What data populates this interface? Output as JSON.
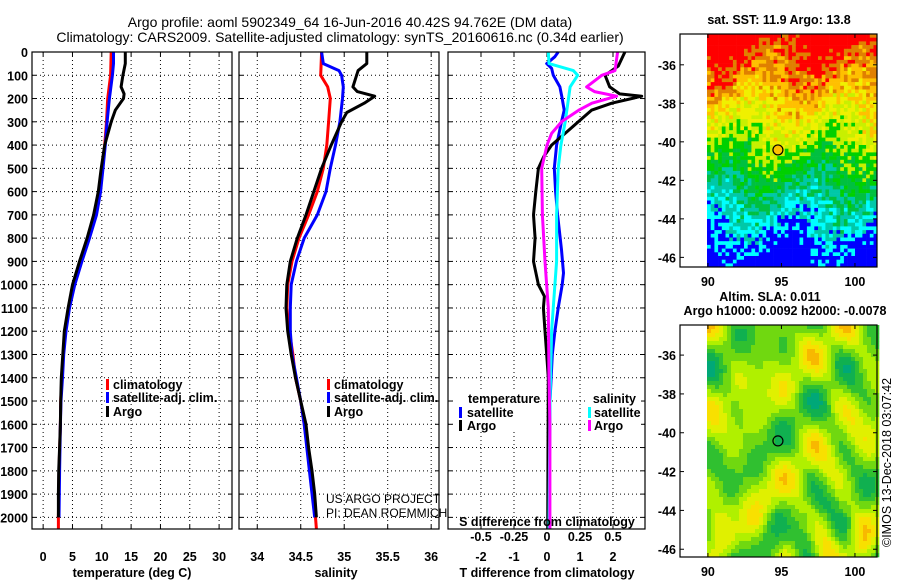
{
  "header": {
    "title_line1": "Argo profile: aoml 5902349_64 16-Jun-2016 40.42S 94.762E (DM data)",
    "title_line2": "Climatology: CARS2009. Satellite-adjusted climatology: synTS_20160616.nc (0.34d earlier)"
  },
  "credits": {
    "project": "US ARGO PROJECT",
    "pi": "PI: DEAN ROEMMICH",
    "timestamp": "©IMOS 13-Dec-2018 03:07:42"
  },
  "colors": {
    "climatology": "#ff0000",
    "satellite": "#0000ff",
    "argo": "#000000",
    "salinity_satellite": "#00ffff",
    "salinity_argo": "#ff00ff"
  },
  "chart_data": [
    {
      "id": "temperature",
      "type": "line",
      "xlabel": "temperature (deg C)",
      "ylabel": "",
      "xlim": [
        -1.9,
        32.2
      ],
      "ylim": [
        2050,
        0
      ],
      "xticks": [
        0,
        5,
        10,
        15,
        20,
        25,
        30
      ],
      "yticks": [
        0,
        100,
        200,
        300,
        400,
        500,
        600,
        700,
        800,
        900,
        1000,
        1100,
        1200,
        1300,
        1400,
        1500,
        1600,
        1700,
        1800,
        1900,
        2000
      ],
      "grid": true,
      "legend": {
        "position": "lower-right",
        "entries": [
          "climatology",
          "satellite-adj. clim.",
          "Argo"
        ]
      },
      "series": [
        {
          "name": "climatology",
          "color": "#ff0000",
          "depth": [
            0,
            100,
            200,
            300,
            400,
            500,
            600,
            700,
            800,
            900,
            1000,
            1100,
            1200,
            1300,
            1400,
            1500,
            1600,
            1800,
            2000,
            2050
          ],
          "values": [
            11.6,
            11.5,
            11.0,
            10.8,
            10.5,
            10.0,
            9.6,
            8.9,
            7.7,
            6.5,
            5.3,
            4.4,
            3.8,
            3.45,
            3.2,
            3.0,
            2.95,
            2.7,
            2.6,
            2.6
          ]
        },
        {
          "name": "satellite-adj. clim.",
          "color": "#0000ff",
          "depth": [
            0,
            50,
            100,
            200,
            300,
            400,
            500,
            600,
            700,
            800,
            900,
            1000,
            1100,
            1200,
            1300,
            1400,
            1500,
            1600,
            1800,
            2000
          ],
          "values": [
            12.0,
            12.0,
            11.8,
            11.3,
            10.9,
            10.6,
            10.2,
            9.8,
            9.1,
            7.9,
            6.6,
            5.4,
            4.5,
            3.9,
            3.5,
            3.3,
            3.05,
            2.95,
            2.8,
            2.7
          ]
        },
        {
          "name": "Argo",
          "color": "#000000",
          "depth": [
            0,
            50,
            100,
            150,
            180,
            200,
            250,
            300,
            400,
            500,
            600,
            700,
            800,
            900,
            1000,
            1100,
            1200,
            1300,
            1400,
            1500,
            1600,
            1700,
            1800,
            1900,
            2000
          ],
          "values": [
            14.0,
            14.0,
            13.6,
            13.3,
            13.8,
            13.7,
            12.3,
            11.6,
            10.5,
            9.9,
            9.4,
            8.6,
            7.5,
            6.2,
            5.0,
            4.25,
            3.6,
            3.35,
            3.1,
            3.0,
            2.95,
            2.8,
            2.65,
            2.6,
            2.6
          ]
        }
      ]
    },
    {
      "id": "salinity",
      "type": "line",
      "xlabel": "salinity",
      "xlim": [
        33.79,
        36.09
      ],
      "ylim": [
        2050,
        0
      ],
      "xticks": [
        34,
        34.5,
        35,
        35.5,
        36
      ],
      "grid": true,
      "legend": {
        "position": "lower-right",
        "entries": [
          "climatology",
          "satellite-adj. clim.",
          "Argo"
        ]
      },
      "series": [
        {
          "name": "climatology",
          "color": "#ff0000",
          "depth": [
            0,
            100,
            150,
            200,
            300,
            400,
            500,
            600,
            700,
            800,
            900,
            1000,
            1100,
            1200,
            1300,
            1400,
            1500,
            1600,
            1800,
            2000,
            2050
          ],
          "values": [
            34.74,
            34.73,
            34.81,
            34.84,
            34.82,
            34.8,
            34.76,
            34.69,
            34.59,
            34.48,
            34.4,
            34.35,
            34.34,
            34.37,
            34.41,
            34.44,
            34.5,
            34.54,
            34.61,
            34.67,
            34.68
          ]
        },
        {
          "name": "satellite-adj. clim.",
          "color": "#0000ff",
          "depth": [
            0,
            50,
            80,
            100,
            150,
            200,
            300,
            400,
            500,
            600,
            700,
            800,
            900,
            1000,
            1100,
            1200,
            1300,
            1400,
            1500,
            1600,
            1800,
            2000
          ],
          "values": [
            34.74,
            34.76,
            34.94,
            34.97,
            34.99,
            34.98,
            34.95,
            34.9,
            34.84,
            34.79,
            34.69,
            34.54,
            34.45,
            34.39,
            34.38,
            34.38,
            34.4,
            34.45,
            34.5,
            34.54,
            34.6,
            34.66
          ]
        },
        {
          "name": "Argo",
          "color": "#000000",
          "depth": [
            0,
            50,
            80,
            150,
            170,
            190,
            220,
            260,
            300,
            400,
            500,
            600,
            700,
            800,
            900,
            1000,
            1100,
            1200,
            1300,
            1400,
            1500,
            1600,
            1700,
            1800,
            1900,
            2000
          ],
          "values": [
            35.26,
            35.26,
            35.16,
            35.1,
            35.15,
            35.35,
            35.23,
            35.03,
            34.97,
            34.85,
            34.74,
            34.65,
            34.56,
            34.46,
            34.38,
            34.34,
            34.33,
            34.35,
            34.39,
            34.44,
            34.5,
            34.56,
            34.59,
            34.63,
            34.66,
            34.68
          ]
        }
      ]
    },
    {
      "id": "difference",
      "type": "line",
      "xlabel": "T difference from climatology",
      "x2label": "S difference from climatology",
      "xlim": [
        -3.0,
        2.97
      ],
      "x2lim": [
        -0.75,
        0.7425
      ],
      "ylim": [
        2050,
        0
      ],
      "xticks": [
        -2,
        -1,
        0,
        1,
        2
      ],
      "x2ticks": [
        -0.5,
        -0.25,
        0,
        0.25,
        0.5
      ],
      "x2ticklabels": [
        "-0.5",
        "-0.25",
        "0",
        "0.25",
        "0.5"
      ],
      "grid": true,
      "legend": {
        "temperature_title": "temperature",
        "salinity_title": "salinity",
        "entries": [
          "satellite",
          "Argo",
          "satellite",
          "Argo"
        ]
      },
      "series": [
        {
          "name": "T satellite",
          "axis": "T",
          "color": "#0000ff",
          "depth": [
            0,
            20,
            50,
            70,
            100,
            150,
            200,
            250,
            300,
            400,
            500,
            600,
            700,
            850,
            950,
            1000,
            1100,
            1200,
            1300,
            1500,
            1800,
            2050
          ],
          "values": [
            0.34,
            0.24,
            -0.01,
            0.14,
            0.19,
            0.39,
            0.46,
            0.52,
            0.44,
            0.29,
            0.22,
            0.26,
            0.32,
            0.44,
            0.5,
            0.46,
            0.34,
            0.24,
            0.16,
            0.09,
            0.07,
            0.06
          ]
        },
        {
          "name": "T Argo",
          "axis": "T",
          "color": "#000000",
          "depth": [
            0,
            60,
            100,
            150,
            180,
            190,
            220,
            250,
            300,
            350,
            400,
            450,
            500,
            600,
            700,
            800,
            900,
            1000,
            1050,
            1100,
            1200,
            1300,
            1400,
            1700,
            2050
          ],
          "values": [
            2.36,
            2.16,
            1.76,
            1.9,
            2.2,
            2.87,
            1.96,
            1.35,
            0.95,
            0.55,
            0.14,
            -0.1,
            -0.26,
            -0.34,
            -0.41,
            -0.36,
            -0.41,
            -0.26,
            -0.08,
            -0.11,
            -0.06,
            -0.01,
            0.04,
            0.03,
            0.02
          ]
        },
        {
          "name": "S satellite",
          "axis": "S",
          "color": "#00ffff",
          "depth": [
            0,
            50,
            80,
            100,
            150,
            200,
            300,
            400,
            500,
            700,
            900,
            1000,
            1200,
            1500,
            2050
          ],
          "values": [
            0.01,
            0.015,
            0.2,
            0.233,
            0.175,
            0.163,
            0.138,
            0.105,
            0.085,
            0.073,
            0.073,
            0.06,
            0.035,
            0.023,
            0.015
          ]
        },
        {
          "name": "S Argo",
          "axis": "S",
          "color": "#ff00ff",
          "depth": [
            0,
            80,
            100,
            150,
            170,
            190,
            220,
            250,
            300,
            350,
            400,
            500,
            700,
            900,
            1100,
            1400,
            1600,
            2050
          ],
          "values": [
            0.535,
            0.515,
            0.415,
            0.3,
            0.36,
            0.528,
            0.34,
            0.24,
            0.11,
            0.035,
            0,
            -0.04,
            -0.035,
            -0.015,
            0.01,
            0.015,
            0.022,
            0.022
          ]
        }
      ]
    },
    {
      "id": "sst-map",
      "type": "heatmap",
      "title": "sat. SST: 11.9 Argo: 13.8",
      "xlim": [
        88.1,
        101.5
      ],
      "ylim": [
        -46.5,
        -34.4
      ],
      "xticks": [
        90,
        95,
        100
      ],
      "yticks": [
        -36,
        -38,
        -40,
        -42,
        -44,
        -46
      ],
      "argo_position": {
        "lat": -40.42,
        "lon": 94.762
      },
      "argo_marker_color": "#ffc000"
    },
    {
      "id": "sla-map",
      "type": "heatmap",
      "title_line1": "Altim. SLA: 0.011",
      "title_line2": "Argo h1000: 0.0092 h2000: -0.0078",
      "xlim": [
        88.1,
        101.5
      ],
      "ylim": [
        -46.4,
        -34.45
      ],
      "xticks": [
        90,
        95,
        100
      ],
      "yticks": [
        -36,
        -38,
        -40,
        -42,
        -44,
        -46
      ],
      "argo_position": {
        "lat": -40.42,
        "lon": 94.762
      }
    }
  ]
}
